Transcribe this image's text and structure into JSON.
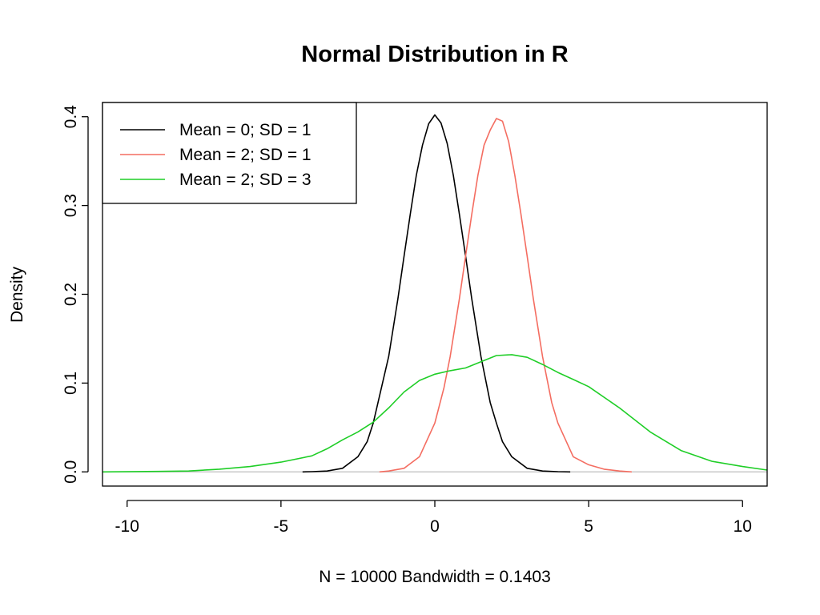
{
  "chart_data": {
    "type": "line",
    "title": "Normal Distribution in R",
    "xlabel": "N = 10000   Bandwidth = 0.1403",
    "ylabel": "Density",
    "xlim": [
      -10.8,
      10.8
    ],
    "ylim": [
      -0.016,
      0.416
    ],
    "xticks": [
      -10,
      -5,
      0,
      5,
      10
    ],
    "xtick_labels": [
      "-10",
      "-5",
      "0",
      "5",
      "10"
    ],
    "yticks": [
      0.0,
      0.1,
      0.2,
      0.3,
      0.4
    ],
    "ytick_labels": [
      "0.0",
      "0.1",
      "0.2",
      "0.3",
      "0.4"
    ],
    "grid": false,
    "legend_position": "top-left",
    "baseline": {
      "y": 0,
      "color": "#bebebe"
    },
    "series": [
      {
        "name": "Mean = 0; SD = 1",
        "color": "#000000",
        "x": [
          -4.3,
          -4.0,
          -3.5,
          -3.0,
          -2.5,
          -2.2,
          -2.0,
          -1.5,
          -1.2,
          -1.0,
          -0.8,
          -0.6,
          -0.4,
          -0.2,
          0.0,
          0.2,
          0.4,
          0.6,
          0.8,
          1.0,
          1.2,
          1.5,
          1.8,
          2.0,
          2.2,
          2.5,
          3.0,
          3.5,
          4.0,
          4.4
        ],
        "y": [
          0.0,
          0.0002,
          0.001,
          0.004,
          0.017,
          0.034,
          0.055,
          0.13,
          0.195,
          0.243,
          0.29,
          0.334,
          0.368,
          0.392,
          0.402,
          0.393,
          0.37,
          0.334,
          0.29,
          0.243,
          0.195,
          0.13,
          0.078,
          0.055,
          0.034,
          0.017,
          0.004,
          0.001,
          0.0002,
          0.0
        ]
      },
      {
        "name": "Mean = 2; SD = 1",
        "color": "#f46d61",
        "x": [
          -1.8,
          -1.5,
          -1.0,
          -0.5,
          0.0,
          0.3,
          0.5,
          0.8,
          1.0,
          1.2,
          1.4,
          1.6,
          1.8,
          2.0,
          2.2,
          2.4,
          2.6,
          2.8,
          3.0,
          3.2,
          3.5,
          3.8,
          4.0,
          4.5,
          5.0,
          5.5,
          6.0,
          6.4
        ],
        "y": [
          0.0,
          0.001,
          0.004,
          0.017,
          0.055,
          0.095,
          0.13,
          0.195,
          0.243,
          0.29,
          0.334,
          0.368,
          0.385,
          0.398,
          0.395,
          0.372,
          0.334,
          0.29,
          0.243,
          0.195,
          0.13,
          0.078,
          0.055,
          0.017,
          0.008,
          0.003,
          0.001,
          0.0
        ]
      },
      {
        "name": "Mean = 2; SD = 3",
        "color": "#1fce27",
        "x": [
          -10.8,
          -9.0,
          -8.0,
          -7.0,
          -6.0,
          -5.0,
          -4.0,
          -3.5,
          -3.0,
          -2.5,
          -2.0,
          -1.5,
          -1.0,
          -0.5,
          0.0,
          0.5,
          1.0,
          1.5,
          2.0,
          2.5,
          3.0,
          3.5,
          4.0,
          4.5,
          5.0,
          6.0,
          7.0,
          8.0,
          9.0,
          10.0,
          10.8
        ],
        "y": [
          0.0,
          0.0005,
          0.001,
          0.003,
          0.006,
          0.011,
          0.018,
          0.026,
          0.036,
          0.045,
          0.056,
          0.072,
          0.09,
          0.103,
          0.11,
          0.114,
          0.117,
          0.124,
          0.131,
          0.132,
          0.129,
          0.121,
          0.112,
          0.104,
          0.096,
          0.072,
          0.045,
          0.024,
          0.012,
          0.006,
          0.002
        ]
      }
    ]
  }
}
